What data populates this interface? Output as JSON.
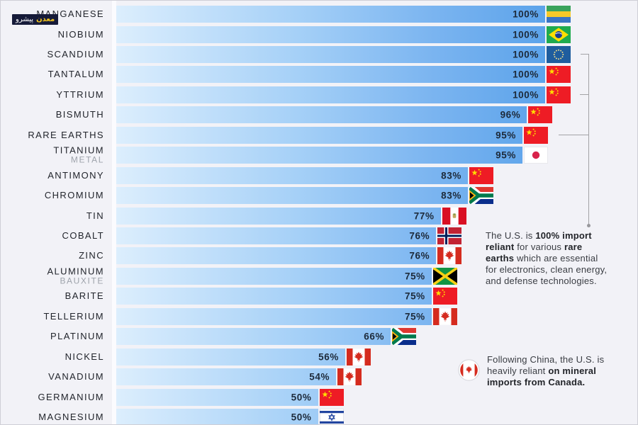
{
  "watermark": {
    "brand_right": "معدن",
    "brand_left": "پیشرو"
  },
  "chart_data": {
    "type": "bar",
    "orientation": "horizontal",
    "value_unit": "%",
    "xlim": [
      0,
      100
    ],
    "rows": [
      {
        "label": "MANGANESE",
        "sublabel": "",
        "value": 100,
        "value_label": "100%",
        "country": "gabon"
      },
      {
        "label": "NIOBIUM",
        "sublabel": "",
        "value": 100,
        "value_label": "100%",
        "country": "brazil"
      },
      {
        "label": "SCANDIUM",
        "sublabel": "",
        "value": 100,
        "value_label": "100%",
        "country": "eu"
      },
      {
        "label": "TANTALUM",
        "sublabel": "",
        "value": 100,
        "value_label": "100%",
        "country": "china"
      },
      {
        "label": "YTTRIUM",
        "sublabel": "",
        "value": 100,
        "value_label": "100%",
        "country": "china"
      },
      {
        "label": "BISMUTH",
        "sublabel": "",
        "value": 96,
        "value_label": "96%",
        "country": "china"
      },
      {
        "label": "RARE EARTHS",
        "sublabel": "",
        "value": 95,
        "value_label": "95%",
        "country": "china"
      },
      {
        "label": "TITANIUM",
        "sublabel": "METAL",
        "value": 95,
        "value_label": "95%",
        "country": "japan"
      },
      {
        "label": "ANTIMONY",
        "sublabel": "",
        "value": 83,
        "value_label": "83%",
        "country": "china"
      },
      {
        "label": "CHROMIUM",
        "sublabel": "",
        "value": 83,
        "value_label": "83%",
        "country": "south-africa"
      },
      {
        "label": "TIN",
        "sublabel": "",
        "value": 77,
        "value_label": "77%",
        "country": "peru"
      },
      {
        "label": "COBALT",
        "sublabel": "",
        "value": 76,
        "value_label": "76%",
        "country": "norway"
      },
      {
        "label": "ZINC",
        "sublabel": "",
        "value": 76,
        "value_label": "76%",
        "country": "canada"
      },
      {
        "label": "ALUMINUM",
        "sublabel": "BAUXITE",
        "value": 75,
        "value_label": "75%",
        "country": "jamaica"
      },
      {
        "label": "BARITE",
        "sublabel": "",
        "value": 75,
        "value_label": "75%",
        "country": "china"
      },
      {
        "label": "TELLERIUM",
        "sublabel": "",
        "value": 75,
        "value_label": "75%",
        "country": "canada"
      },
      {
        "label": "PLATINUM",
        "sublabel": "",
        "value": 66,
        "value_label": "66%",
        "country": "south-africa"
      },
      {
        "label": "NICKEL",
        "sublabel": "",
        "value": 56,
        "value_label": "56%",
        "country": "canada"
      },
      {
        "label": "VANADIUM",
        "sublabel": "",
        "value": 54,
        "value_label": "54%",
        "country": "canada"
      },
      {
        "label": "GERMANIUM",
        "sublabel": "",
        "value": 50,
        "value_label": "50%",
        "country": "china"
      },
      {
        "label": "MAGNESIUM",
        "sublabel": "",
        "value": 50,
        "value_label": "50%",
        "country": "israel"
      }
    ]
  },
  "annotations": [
    {
      "id": "rare-earths",
      "lines": [
        [
          {
            "t": "The U.S. is ",
            "b": false
          },
          {
            "t": "100% import",
            "b": true
          }
        ],
        [
          {
            "t": "reliant",
            "b": true
          },
          {
            "t": " for various ",
            "b": false
          },
          {
            "t": "rare",
            "b": true
          }
        ],
        [
          {
            "t": "earths",
            "b": true
          },
          {
            "t": " which are essential",
            "b": false
          }
        ],
        [
          {
            "t": "for electronics, clean energy,",
            "b": false
          }
        ],
        [
          {
            "t": "and defense technologies.",
            "b": false
          }
        ]
      ]
    },
    {
      "id": "canada",
      "badge_icon": "canada-flag-badge",
      "lines": [
        [
          {
            "t": "Following China, the U.S. is",
            "b": false
          }
        ],
        [
          {
            "t": "heavily reliant ",
            "b": false
          },
          {
            "t": "on mineral",
            "b": true
          }
        ],
        [
          {
            "t": "imports from Canada.",
            "b": true
          }
        ]
      ]
    }
  ],
  "colors": {
    "background": "#f2f2f7",
    "bar_gradient_start": "#dceefd",
    "bar_gradient_end": "#559fe9",
    "label": "#22252c",
    "sublabel": "#9ea3ab",
    "value_text": "#1d2a3a",
    "bracket": "#a3a3a6"
  }
}
